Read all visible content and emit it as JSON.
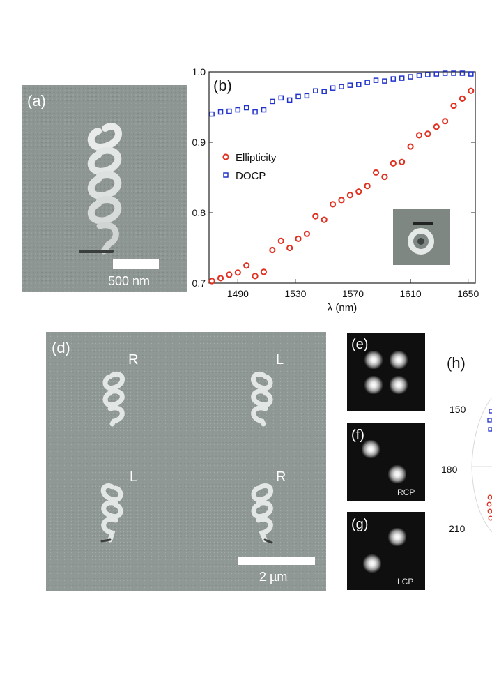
{
  "panels": {
    "a": {
      "label": "(a)",
      "scale": "500 nm"
    },
    "b": {
      "label": "(b)"
    },
    "d": {
      "label": "(d)",
      "scale": "2 µm",
      "helix_labels": [
        "R",
        "L",
        "L",
        "R"
      ]
    },
    "e": {
      "label": "(e)"
    },
    "f": {
      "label": "(f)",
      "tag": "RCP"
    },
    "g": {
      "label": "(g)",
      "tag": "LCP"
    },
    "h": {
      "label": "(h)",
      "angle_labels": [
        "150",
        "180",
        "210"
      ]
    }
  },
  "colors": {
    "ellipticity": "#e03020",
    "docp": "#2233cc",
    "sem": "#8d9692"
  },
  "chart_data": {
    "type": "scatter",
    "title": "",
    "xlabel": "λ (nm)",
    "ylabel": "",
    "xlim": [
      1470,
      1655
    ],
    "ylim": [
      0.7,
      1.0
    ],
    "xticks": [
      1490,
      1530,
      1570,
      1610,
      1650
    ],
    "yticks": [
      "0.7",
      "0.8",
      "0.9",
      "1.0"
    ],
    "legend_position": "left",
    "has_inset_image": true,
    "series": [
      {
        "name": "Ellipticity",
        "marker": "circle",
        "x": [
          1472,
          1478,
          1484,
          1490,
          1496,
          1502,
          1508,
          1514,
          1520,
          1526,
          1532,
          1538,
          1544,
          1550,
          1556,
          1562,
          1568,
          1574,
          1580,
          1586,
          1592,
          1598,
          1604,
          1610,
          1616,
          1622,
          1628,
          1634,
          1640,
          1646,
          1652
        ],
        "y": [
          0.703,
          0.707,
          0.712,
          0.715,
          0.725,
          0.71,
          0.716,
          0.747,
          0.76,
          0.75,
          0.763,
          0.77,
          0.795,
          0.79,
          0.812,
          0.818,
          0.825,
          0.83,
          0.838,
          0.857,
          0.851,
          0.87,
          0.872,
          0.894,
          0.91,
          0.912,
          0.922,
          0.93,
          0.952,
          0.962,
          0.973
        ]
      },
      {
        "name": "DOCP",
        "marker": "square",
        "x": [
          1472,
          1478,
          1484,
          1490,
          1496,
          1502,
          1508,
          1514,
          1520,
          1526,
          1532,
          1538,
          1544,
          1550,
          1556,
          1562,
          1568,
          1574,
          1580,
          1586,
          1592,
          1598,
          1604,
          1610,
          1616,
          1622,
          1628,
          1634,
          1640,
          1646,
          1652
        ],
        "y": [
          0.94,
          0.943,
          0.944,
          0.946,
          0.949,
          0.943,
          0.946,
          0.958,
          0.963,
          0.96,
          0.965,
          0.966,
          0.973,
          0.972,
          0.977,
          0.979,
          0.981,
          0.982,
          0.985,
          0.988,
          0.987,
          0.99,
          0.991,
          0.993,
          0.995,
          0.996,
          0.997,
          0.998,
          0.998,
          0.998,
          0.997
        ]
      }
    ]
  }
}
